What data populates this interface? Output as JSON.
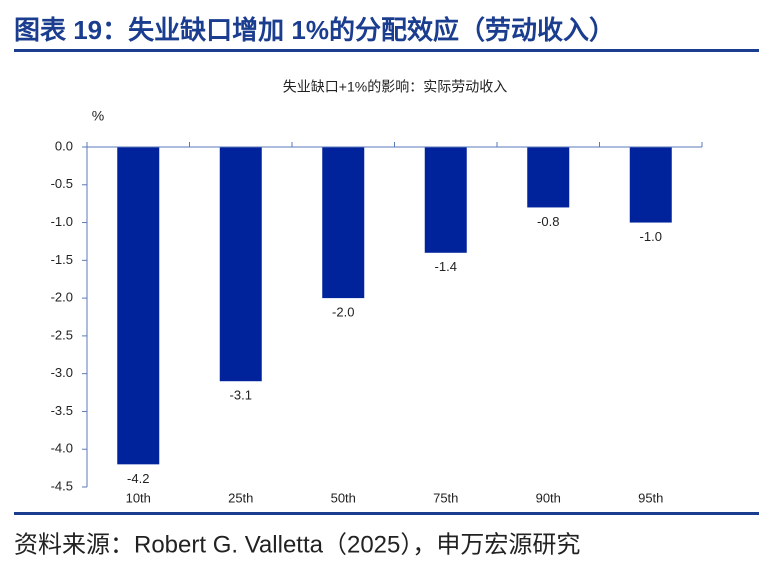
{
  "header": {
    "title": "图表 19：失业缺口增加 1%的分配效应（劳动收入）"
  },
  "chart_data": {
    "type": "bar",
    "title": "失业缺口+1%的影响：实际劳动收入",
    "y_label": "%",
    "categories": [
      "10th",
      "25th",
      "50th",
      "75th",
      "90th",
      "95th"
    ],
    "values": [
      -4.2,
      -3.1,
      -2.0,
      -1.4,
      -0.8,
      -1.0
    ],
    "value_labels": [
      "-4.2",
      "-3.1",
      "-2.0",
      "-1.4",
      "-0.8",
      "-1.0"
    ],
    "color": "#00239c",
    "ylim": [
      -4.5,
      0
    ],
    "yticks": [
      {
        "value": 0,
        "label": "0.0"
      },
      -0.5,
      {
        "value": -1,
        "label": "-1.0"
      },
      -1.5,
      {
        "value": -2,
        "label": "-2.0"
      },
      -2.5,
      {
        "value": -3,
        "label": "-3.0"
      },
      -3.5,
      {
        "value": -4,
        "label": "-4.0"
      },
      -4.5
    ],
    "grid": false
  },
  "footer": {
    "source": "资料来源：Robert G. Valletta（2025），申万宏源研究"
  }
}
